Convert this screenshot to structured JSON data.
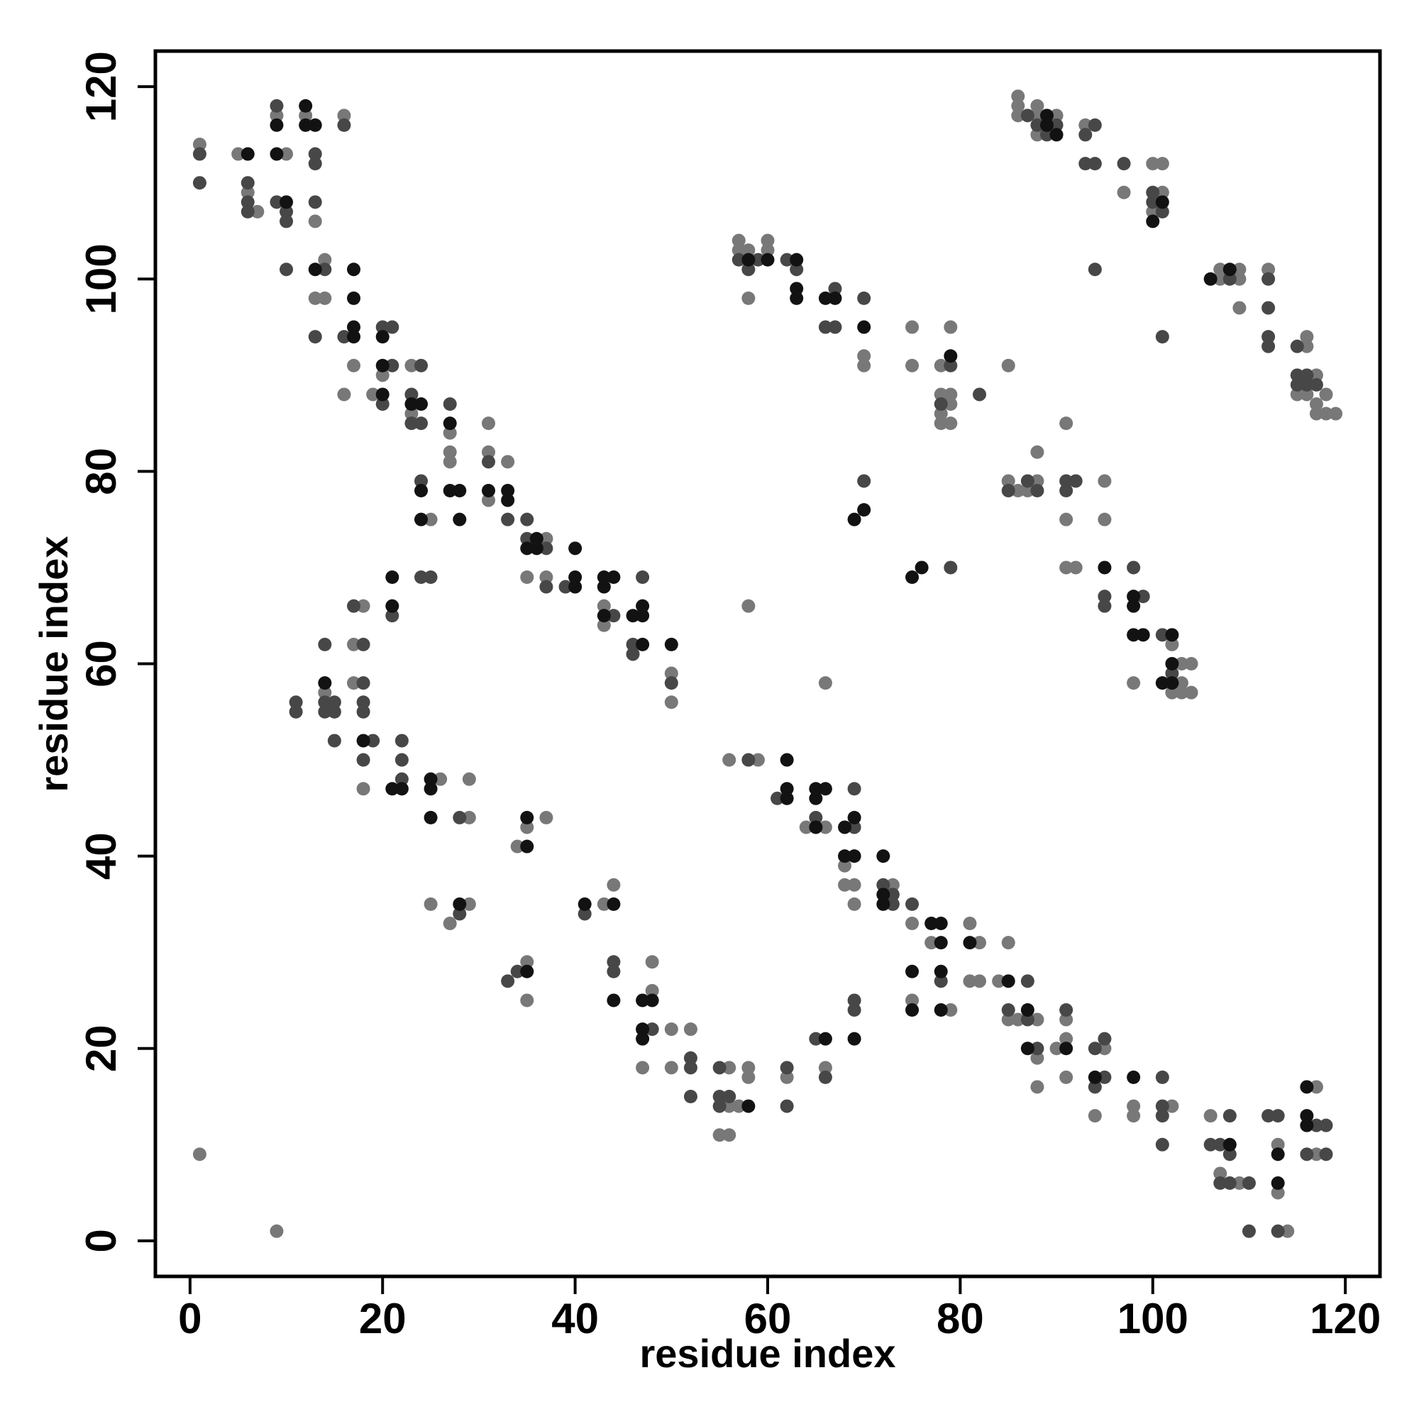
{
  "chart_data": {
    "type": "scatter",
    "xlabel": "residue index",
    "ylabel": "residue index",
    "xlim": [
      -3.6,
      123.6
    ],
    "ylim": [
      -3.7,
      123.7
    ],
    "xticks": [
      0,
      20,
      40,
      60,
      80,
      100,
      120
    ],
    "yticks": [
      0,
      20,
      40,
      60,
      80,
      100,
      120
    ],
    "grid": false,
    "series": [
      {
        "color": "#787878",
        "x": [
          1,
          5,
          6,
          7,
          9,
          10,
          12,
          13,
          16,
          14,
          13,
          14,
          17,
          16,
          20,
          19,
          23,
          23,
          27,
          27,
          27,
          25,
          31,
          31,
          33,
          31,
          37,
          35,
          37,
          43,
          43,
          50,
          50,
          18,
          17,
          17,
          14,
          18,
          26,
          29,
          29,
          25,
          29,
          27,
          34,
          35,
          37,
          35,
          35,
          43,
          44,
          48,
          48,
          47,
          50,
          50,
          52,
          56,
          56,
          57,
          55,
          56,
          58,
          58,
          62,
          66,
          56,
          59,
          64,
          66,
          68,
          68,
          69,
          69,
          73,
          75,
          77,
          81,
          82,
          81,
          82,
          85,
          84,
          75,
          79,
          85,
          86,
          88,
          88,
          88,
          90,
          91,
          91,
          91,
          95,
          94,
          98,
          98,
          102,
          106,
          107,
          109,
          113,
          113,
          114,
          117,
          117,
          1,
          9,
          57,
          57,
          58,
          60,
          60,
          58,
          70,
          70,
          75,
          75,
          78,
          79,
          78,
          79,
          79,
          78,
          78,
          79,
          85,
          58,
          66,
          86,
          86,
          86,
          88,
          88,
          88,
          90,
          93,
          97,
          100,
          101,
          101,
          100,
          107,
          107,
          109,
          109,
          109,
          112,
          116,
          116,
          117,
          115,
          116,
          117,
          117,
          118,
          118,
          119,
          85,
          86,
          87,
          88,
          88,
          91,
          91,
          95,
          95,
          91,
          92,
          98,
          102,
          103,
          104,
          103,
          102,
          103,
          104
        ],
        "values": [
          114,
          113,
          109,
          107,
          117,
          113,
          117,
          106,
          117,
          102,
          98,
          98,
          91,
          88,
          90,
          88,
          91,
          86,
          84,
          82,
          81,
          75,
          85,
          82,
          81,
          77,
          73,
          69,
          69,
          66,
          64,
          59,
          56,
          66,
          62,
          58,
          57,
          47,
          48,
          48,
          44,
          35,
          35,
          33,
          41,
          43,
          44,
          29,
          25,
          35,
          37,
          29,
          26,
          18,
          22,
          18,
          22,
          18,
          14,
          14,
          11,
          11,
          18,
          17,
          17,
          18,
          50,
          50,
          43,
          43,
          39,
          37,
          37,
          35,
          37,
          33,
          31,
          33,
          31,
          27,
          27,
          31,
          27,
          25,
          24,
          23,
          23,
          23,
          19,
          16,
          20,
          21,
          23,
          17,
          20,
          13,
          14,
          13,
          14,
          13,
          7,
          6,
          10,
          5,
          1,
          16,
          9,
          9,
          1,
          104,
          103,
          103,
          104,
          103,
          98,
          92,
          91,
          95,
          91,
          91,
          95,
          88,
          88,
          87,
          86,
          85,
          85,
          91,
          66,
          58,
          119,
          118,
          117,
          118,
          117,
          115,
          117,
          116,
          109,
          112,
          112,
          109,
          107,
          101,
          100,
          101,
          100,
          97,
          101,
          94,
          93,
          90,
          88,
          88,
          87,
          86,
          88,
          86,
          86,
          79,
          78,
          78,
          79,
          82,
          85,
          75,
          79,
          75,
          70,
          70,
          58,
          62,
          60,
          60,
          58,
          57,
          57,
          57
        ]
      },
      {
        "color": "#474747",
        "x": [
          1,
          1,
          6,
          6,
          6,
          9,
          9,
          10,
          10,
          10,
          13,
          13,
          13,
          16,
          14,
          13,
          16,
          20,
          21,
          21,
          20,
          24,
          23,
          23,
          24,
          27,
          24,
          31,
          33,
          35,
          35,
          37,
          37,
          39,
          47,
          44,
          46,
          46,
          50,
          24,
          25,
          21,
          17,
          18,
          14,
          18,
          14,
          15,
          14,
          15,
          11,
          11,
          18,
          18,
          15,
          19,
          18,
          22,
          22,
          22,
          28,
          28,
          34,
          33,
          41,
          44,
          44,
          48,
          52,
          52,
          52,
          55,
          55,
          56,
          55,
          62,
          62,
          65,
          66,
          69,
          69,
          58,
          61,
          65,
          69,
          69,
          72,
          73,
          73,
          75,
          78,
          87,
          85,
          87,
          88,
          91,
          94,
          95,
          95,
          94,
          101,
          101,
          101,
          101,
          106,
          107,
          108,
          108,
          107,
          108,
          110,
          112,
          113,
          110,
          113,
          117,
          118,
          116,
          118,
          57,
          59,
          58,
          62,
          63,
          67,
          66,
          67,
          70,
          79,
          78,
          82,
          70,
          79,
          87,
          88,
          89,
          90,
          94,
          93,
          93,
          94,
          97,
          100,
          100,
          101,
          94,
          108,
          112,
          112,
          112,
          112,
          101,
          115,
          115,
          116,
          115,
          116,
          117,
          85,
          87,
          88,
          91,
          92,
          91,
          95,
          95,
          98,
          99,
          101,
          102
        ],
        "values": [
          113,
          110,
          110,
          108,
          107,
          118,
          108,
          107,
          106,
          101,
          113,
          112,
          108,
          116,
          101,
          94,
          94,
          95,
          95,
          91,
          87,
          91,
          88,
          85,
          85,
          87,
          79,
          81,
          75,
          75,
          73,
          72,
          68,
          68,
          69,
          65,
          62,
          61,
          58,
          69,
          69,
          65,
          66,
          62,
          62,
          58,
          56,
          56,
          55,
          55,
          56,
          55,
          56,
          55,
          52,
          52,
          50,
          52,
          50,
          48,
          44,
          34,
          28,
          27,
          34,
          29,
          28,
          22,
          19,
          18,
          15,
          18,
          15,
          15,
          14,
          18,
          14,
          21,
          17,
          25,
          24,
          50,
          46,
          44,
          47,
          43,
          37,
          36,
          35,
          35,
          27,
          27,
          24,
          23,
          20,
          24,
          20,
          21,
          17,
          16,
          17,
          14,
          13,
          10,
          10,
          10,
          13,
          9,
          6,
          6,
          6,
          13,
          13,
          1,
          1,
          12,
          12,
          9,
          9,
          102,
          102,
          101,
          102,
          101,
          99,
          95,
          95,
          98,
          91,
          87,
          88,
          79,
          70,
          117,
          116,
          115,
          116,
          116,
          115,
          112,
          112,
          112,
          109,
          108,
          107,
          101,
          100,
          100,
          97,
          94,
          93,
          94,
          93,
          90,
          90,
          89,
          89,
          89,
          78,
          79,
          78,
          79,
          79,
          78,
          67,
          66,
          70,
          67,
          63,
          59
        ]
      },
      {
        "color": "#121212",
        "x": [
          6,
          9,
          9,
          10,
          12,
          12,
          13,
          13,
          17,
          17,
          17,
          17,
          20,
          20,
          20,
          23,
          24,
          27,
          24,
          27,
          28,
          24,
          28,
          31,
          33,
          33,
          35,
          36,
          36,
          40,
          40,
          40,
          43,
          44,
          43,
          43,
          47,
          46,
          47,
          47,
          50,
          21,
          21,
          14,
          18,
          21,
          22,
          25,
          25,
          25,
          28,
          35,
          35,
          35,
          41,
          44,
          44,
          47,
          48,
          47,
          47,
          58,
          66,
          69,
          62,
          62,
          62,
          65,
          66,
          65,
          65,
          68,
          69,
          68,
          69,
          72,
          72,
          72,
          77,
          78,
          78,
          81,
          75,
          78,
          85,
          75,
          78,
          87,
          87,
          91,
          94,
          98,
          108,
          113,
          113,
          116,
          116,
          116,
          58,
          60,
          63,
          63,
          63,
          66,
          67,
          70,
          79,
          70,
          69,
          75,
          76,
          89,
          89,
          90,
          101,
          100,
          106,
          108,
          95,
          98,
          98,
          98,
          99,
          102,
          102,
          101,
          102
        ],
        "values": [
          113,
          116,
          113,
          108,
          118,
          116,
          116,
          101,
          101,
          98,
          95,
          94,
          94,
          91,
          88,
          87,
          87,
          85,
          78,
          78,
          78,
          75,
          75,
          78,
          78,
          77,
          72,
          73,
          72,
          72,
          69,
          68,
          69,
          69,
          68,
          65,
          66,
          65,
          65,
          62,
          62,
          69,
          66,
          58,
          52,
          47,
          47,
          48,
          47,
          44,
          35,
          41,
          44,
          28,
          35,
          35,
          25,
          25,
          25,
          22,
          21,
          14,
          21,
          21,
          50,
          47,
          46,
          47,
          47,
          46,
          43,
          43,
          44,
          40,
          40,
          40,
          36,
          35,
          33,
          33,
          31,
          31,
          28,
          28,
          27,
          24,
          24,
          24,
          20,
          20,
          17,
          17,
          10,
          9,
          6,
          16,
          13,
          12,
          102,
          102,
          102,
          99,
          98,
          98,
          98,
          95,
          92,
          76,
          75,
          69,
          70,
          117,
          116,
          115,
          108,
          106,
          100,
          101,
          70,
          67,
          66,
          63,
          63,
          63,
          60,
          58,
          58
        ]
      }
    ]
  }
}
